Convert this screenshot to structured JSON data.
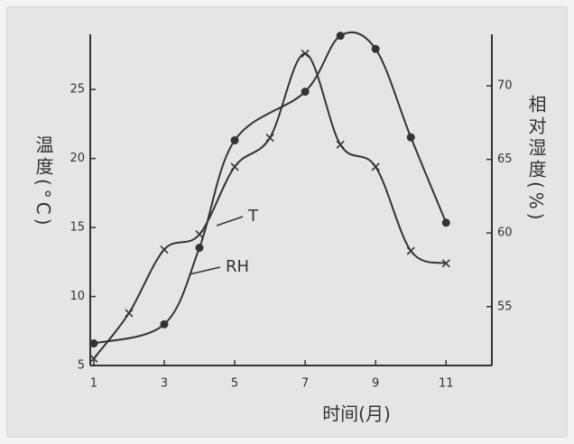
{
  "chart_data": {
    "type": "line",
    "xlabel": "时间(月)",
    "ylabel": "温度(°C)",
    "y2label": "相对湿度(%)",
    "xlim": [
      0.9,
      12.3
    ],
    "xticks": [
      1,
      3,
      5,
      7,
      9,
      11
    ],
    "ylim": [
      5,
      29
    ],
    "yticks": [
      5,
      10,
      15,
      20,
      25
    ],
    "y2lim": [
      51,
      73.5
    ],
    "y2ticks": [
      55,
      60,
      65,
      70
    ],
    "series": [
      {
        "name": "T",
        "color": "#333333",
        "marker": "x",
        "axis": "y",
        "x": [
          1,
          2,
          3,
          4,
          5,
          6,
          7,
          8,
          9,
          10,
          11
        ],
        "values": [
          5.5,
          8.8,
          13.4,
          14.5,
          19.4,
          21.5,
          27.6,
          21,
          19.4,
          13.3,
          12.4
        ]
      },
      {
        "name": "RH",
        "color": "#333333",
        "marker": "o",
        "axis": "y2",
        "x": [
          1,
          3,
          4,
          5,
          7,
          8,
          9,
          10,
          11
        ],
        "values": [
          52.5,
          53.8,
          59,
          66.3,
          69.6,
          73.4,
          72.5,
          66.5,
          60.7
        ]
      }
    ]
  }
}
